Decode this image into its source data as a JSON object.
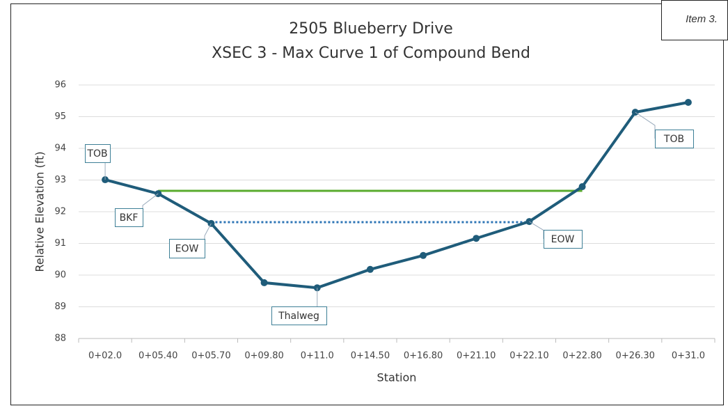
{
  "item_label": "Item 3.",
  "chart_data": {
    "type": "line",
    "title": [
      "2505 Blueberry Drive",
      "XSEC 3 - Max Curve 1 of Compound Bend"
    ],
    "x_label": "Station",
    "y_label": "Relative Elevation (ft)",
    "categories": [
      "0+02.0",
      "0+05.40",
      "0+05.70",
      "0+09.80",
      "0+11.0",
      "0+14.50",
      "0+16.80",
      "0+21.10",
      "0+22.10",
      "0+22.80",
      "0+26.30",
      "0+31.0"
    ],
    "series": [
      {
        "color": "#1f5c7a",
        "markers": true,
        "values": [
          93.01,
          92.57,
          91.63,
          89.76,
          89.6,
          90.18,
          90.62,
          91.16,
          91.69,
          92.79,
          95.14,
          95.45
        ]
      },
      {
        "color": "#5aab2e",
        "values": [
          null,
          92.66,
          92.66,
          92.66,
          92.66,
          92.66,
          92.66,
          92.66,
          92.66,
          92.66,
          null,
          null
        ]
      },
      {
        "color": "#2e75b6",
        "dash": "dotted",
        "values": [
          null,
          null,
          91.67,
          91.67,
          91.67,
          91.67,
          91.67,
          91.67,
          91.67,
          null,
          null,
          null
        ]
      }
    ],
    "annotations": [
      "TOB",
      "BKF",
      "EOW",
      "Thalweg",
      "TOB",
      "EOW"
    ],
    "ylim": [
      88,
      96
    ],
    "yticks": [
      88,
      89,
      90,
      91,
      92,
      93,
      94,
      95,
      96
    ],
    "grid": true
  }
}
